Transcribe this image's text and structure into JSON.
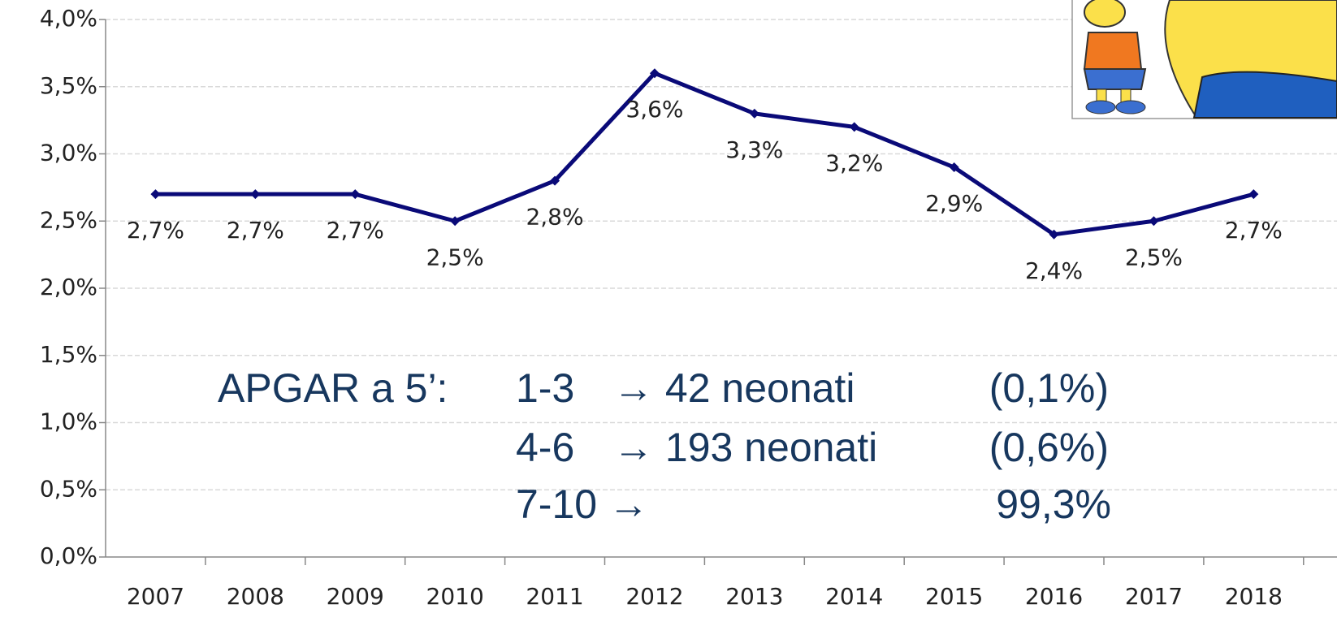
{
  "chart_data": {
    "type": "line",
    "categories": [
      "2007",
      "2008",
      "2009",
      "2010",
      "2011",
      "2012",
      "2013",
      "2014",
      "2015",
      "2016",
      "2017",
      "2018"
    ],
    "values": [
      2.7,
      2.7,
      2.7,
      2.5,
      2.8,
      3.6,
      3.3,
      3.2,
      2.9,
      2.4,
      2.5,
      2.7
    ],
    "value_labels": [
      "2,7%",
      "2,7%",
      "2,7%",
      "2,5%",
      "2,8%",
      "3,6%",
      "3,3%",
      "3,2%",
      "2,9%",
      "2,4%",
      "2,5%",
      "2,7%"
    ],
    "color": "#0a0a78",
    "ylim": [
      0,
      4
    ],
    "yticks": [
      {
        "value": 0,
        "label": "0,0%"
      },
      {
        "value": 0.5,
        "label": "0,5%"
      },
      {
        "value": 1,
        "label": "1,0%"
      },
      {
        "value": 1.5,
        "label": "1,5%"
      },
      {
        "value": 2,
        "label": "2,0%"
      },
      {
        "value": 2.5,
        "label": "2,5%"
      },
      {
        "value": 3,
        "label": "3,0%"
      },
      {
        "value": 3.5,
        "label": "3,5%"
      },
      {
        "value": 4,
        "label": "4,0%"
      }
    ],
    "grid": true,
    "annotation": {
      "label": "APGAR a 5’:",
      "rows": [
        {
          "range": "1-3",
          "count": "→ 42 neonati",
          "share": "(0,1%)"
        },
        {
          "range": "4-6",
          "count": "→ 193 neonati",
          "share": "(0,6%)"
        },
        {
          "range": "7-10 →",
          "share": "99,3%"
        }
      ]
    }
  }
}
